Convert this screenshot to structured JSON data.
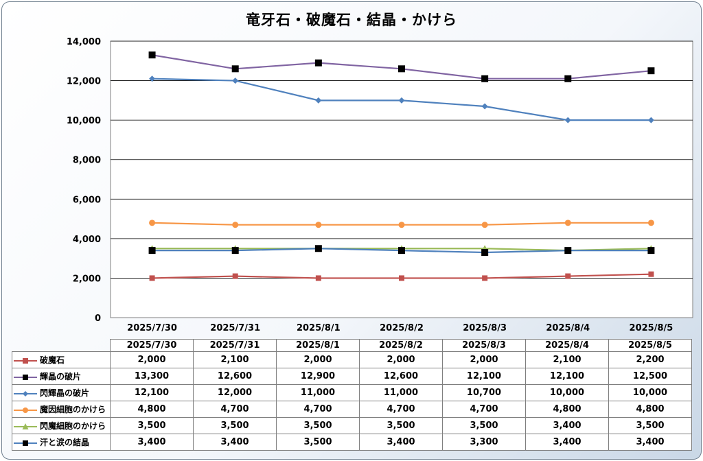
{
  "chart_data": {
    "type": "line",
    "title": "竜牙石・破魔石・結晶・かけら",
    "categories": [
      "2025/7/30",
      "2025/7/31",
      "2025/8/1",
      "2025/8/2",
      "2025/8/3",
      "2025/8/4",
      "2025/8/5"
    ],
    "ylim": [
      0,
      14000
    ],
    "yticks": [
      "14,000",
      "12,000",
      "10,000",
      "8,000",
      "6,000",
      "4,000",
      "2,000",
      "0"
    ],
    "ytick_values": [
      14000,
      12000,
      10000,
      8000,
      6000,
      4000,
      2000,
      0
    ],
    "grid": true,
    "legend": "data-table",
    "series": [
      {
        "name": "破魔石",
        "values": [
          2000,
          2100,
          2000,
          2000,
          2000,
          2100,
          2200
        ],
        "display": [
          "2,000",
          "2,100",
          "2,000",
          "2,000",
          "2,000",
          "2,100",
          "2,200"
        ],
        "color": "#c0504d",
        "marker": "square"
      },
      {
        "name": "輝晶の破片",
        "values": [
          13300,
          12600,
          12900,
          12600,
          12100,
          12100,
          12500
        ],
        "display": [
          "13,300",
          "12,600",
          "12,900",
          "12,600",
          "12,100",
          "12,100",
          "12,500"
        ],
        "color": "#8064a2",
        "marker": "square-black"
      },
      {
        "name": "閃輝晶の破片",
        "values": [
          12100,
          12000,
          11000,
          11000,
          10700,
          10000,
          10000
        ],
        "display": [
          "12,100",
          "12,000",
          "11,000",
          "11,000",
          "10,700",
          "10,000",
          "10,000"
        ],
        "color": "#4f81bd",
        "marker": "diamond"
      },
      {
        "name": "魔因細胞のかけら",
        "values": [
          4800,
          4700,
          4700,
          4700,
          4700,
          4800,
          4800
        ],
        "display": [
          "4,800",
          "4,700",
          "4,700",
          "4,700",
          "4,700",
          "4,800",
          "4,800"
        ],
        "color": "#f79646",
        "marker": "circle"
      },
      {
        "name": "閃魔細胞のかけら",
        "values": [
          3500,
          3500,
          3500,
          3500,
          3500,
          3400,
          3500
        ],
        "display": [
          "3,500",
          "3,500",
          "3,500",
          "3,500",
          "3,500",
          "3,400",
          "3,500"
        ],
        "color": "#9bbb59",
        "marker": "triangle"
      },
      {
        "name": "汗と涙の結晶",
        "values": [
          3400,
          3400,
          3500,
          3400,
          3300,
          3400,
          3400
        ],
        "display": [
          "3,400",
          "3,400",
          "3,500",
          "3,400",
          "3,300",
          "3,400",
          "3,400"
        ],
        "color": "#4f81bd",
        "marker": "square-black"
      }
    ]
  }
}
